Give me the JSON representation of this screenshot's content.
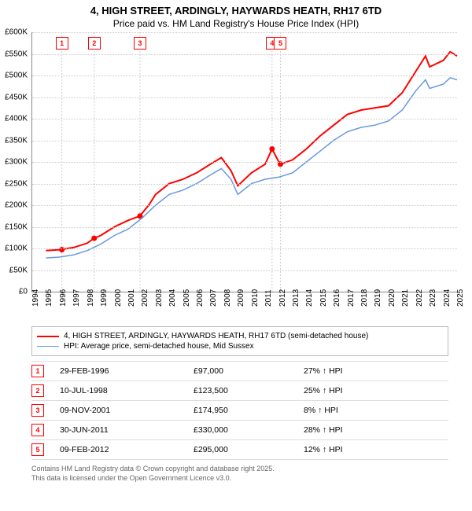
{
  "header": {
    "title": "4, HIGH STREET, ARDINGLY, HAYWARDS HEATH, RH17 6TD",
    "subtitle": "Price paid vs. HM Land Registry's House Price Index (HPI)"
  },
  "chart": {
    "type": "line",
    "background_color": "#ffffff",
    "grid_color": "#cccccc",
    "x": {
      "min": 1994,
      "max": 2025,
      "ticks": [
        1994,
        1995,
        1996,
        1997,
        1998,
        1999,
        2000,
        2001,
        2002,
        2003,
        2004,
        2005,
        2006,
        2007,
        2008,
        2009,
        2010,
        2011,
        2012,
        2013,
        2014,
        2015,
        2016,
        2017,
        2018,
        2019,
        2020,
        2021,
        2022,
        2023,
        2024,
        2025
      ]
    },
    "y": {
      "min": 0,
      "max": 600000,
      "ticks": [
        0,
        50000,
        100000,
        150000,
        200000,
        250000,
        300000,
        350000,
        400000,
        450000,
        500000,
        550000,
        600000
      ],
      "tick_labels": [
        "£0",
        "£50K",
        "£100K",
        "£150K",
        "£200K",
        "£250K",
        "£300K",
        "£350K",
        "£400K",
        "£450K",
        "£500K",
        "£550K",
        "£600K"
      ]
    },
    "series": [
      {
        "name": "price_paid",
        "label": "4, HIGH STREET, ARDINGLY, HAYWARDS HEATH, RH17 6TD (semi-detached house)",
        "color": "#ff0000",
        "line_width": 2,
        "points": [
          [
            1995.0,
            95000
          ],
          [
            1996.0,
            97000
          ],
          [
            1997.0,
            102000
          ],
          [
            1998.0,
            112000
          ],
          [
            1998.5,
            123500
          ],
          [
            1999.0,
            130000
          ],
          [
            2000.0,
            150000
          ],
          [
            2001.0,
            165000
          ],
          [
            2001.85,
            174950
          ],
          [
            2002.5,
            200000
          ],
          [
            2003.0,
            225000
          ],
          [
            2004.0,
            250000
          ],
          [
            2005.0,
            260000
          ],
          [
            2006.0,
            275000
          ],
          [
            2007.0,
            295000
          ],
          [
            2007.8,
            310000
          ],
          [
            2008.5,
            280000
          ],
          [
            2009.0,
            245000
          ],
          [
            2010.0,
            275000
          ],
          [
            2011.0,
            295000
          ],
          [
            2011.5,
            330000
          ],
          [
            2012.0,
            300000
          ],
          [
            2012.11,
            295000
          ],
          [
            2013.0,
            305000
          ],
          [
            2014.0,
            330000
          ],
          [
            2015.0,
            360000
          ],
          [
            2016.0,
            385000
          ],
          [
            2017.0,
            410000
          ],
          [
            2018.0,
            420000
          ],
          [
            2019.0,
            425000
          ],
          [
            2020.0,
            430000
          ],
          [
            2021.0,
            460000
          ],
          [
            2022.0,
            510000
          ],
          [
            2022.7,
            545000
          ],
          [
            2023.0,
            520000
          ],
          [
            2024.0,
            535000
          ],
          [
            2024.5,
            555000
          ],
          [
            2025.0,
            545000
          ]
        ],
        "sale_dots": [
          [
            1996.16,
            97000
          ],
          [
            1998.52,
            123500
          ],
          [
            2001.86,
            174950
          ],
          [
            2011.5,
            330000
          ],
          [
            2012.11,
            295000
          ]
        ]
      },
      {
        "name": "hpi",
        "label": "HPI: Average price, semi-detached house, Mid Sussex",
        "color": "#6699dd",
        "line_width": 1.5,
        "points": [
          [
            1995.0,
            78000
          ],
          [
            1996.0,
            80000
          ],
          [
            1997.0,
            85000
          ],
          [
            1998.0,
            95000
          ],
          [
            1999.0,
            110000
          ],
          [
            2000.0,
            130000
          ],
          [
            2001.0,
            145000
          ],
          [
            2002.0,
            170000
          ],
          [
            2003.0,
            200000
          ],
          [
            2004.0,
            225000
          ],
          [
            2005.0,
            235000
          ],
          [
            2006.0,
            250000
          ],
          [
            2007.0,
            270000
          ],
          [
            2007.8,
            285000
          ],
          [
            2008.5,
            260000
          ],
          [
            2009.0,
            225000
          ],
          [
            2010.0,
            250000
          ],
          [
            2011.0,
            260000
          ],
          [
            2012.0,
            265000
          ],
          [
            2013.0,
            275000
          ],
          [
            2014.0,
            300000
          ],
          [
            2015.0,
            325000
          ],
          [
            2016.0,
            350000
          ],
          [
            2017.0,
            370000
          ],
          [
            2018.0,
            380000
          ],
          [
            2019.0,
            385000
          ],
          [
            2020.0,
            395000
          ],
          [
            2021.0,
            420000
          ],
          [
            2022.0,
            465000
          ],
          [
            2022.7,
            490000
          ],
          [
            2023.0,
            470000
          ],
          [
            2024.0,
            480000
          ],
          [
            2024.5,
            495000
          ],
          [
            2025.0,
            490000
          ]
        ]
      }
    ],
    "callouts": [
      {
        "n": "1",
        "year": 1996.16
      },
      {
        "n": "2",
        "year": 1998.52
      },
      {
        "n": "3",
        "year": 2001.86
      },
      {
        "n": "4",
        "year": 2011.5
      },
      {
        "n": "5",
        "year": 2012.11
      }
    ]
  },
  "legend": {
    "items": [
      {
        "color": "#ff0000",
        "width": 2,
        "label": "4, HIGH STREET, ARDINGLY, HAYWARDS HEATH, RH17 6TD (semi-detached house)"
      },
      {
        "color": "#6699dd",
        "width": 1.5,
        "label": "HPI: Average price, semi-detached house, Mid Sussex"
      }
    ]
  },
  "table": {
    "rows": [
      {
        "n": "1",
        "date": "29-FEB-1996",
        "price": "£97,000",
        "pct": "27% ↑ HPI"
      },
      {
        "n": "2",
        "date": "10-JUL-1998",
        "price": "£123,500",
        "pct": "25% ↑ HPI"
      },
      {
        "n": "3",
        "date": "09-NOV-2001",
        "price": "£174,950",
        "pct": "8% ↑ HPI"
      },
      {
        "n": "4",
        "date": "30-JUN-2011",
        "price": "£330,000",
        "pct": "28% ↑ HPI"
      },
      {
        "n": "5",
        "date": "09-FEB-2012",
        "price": "£295,000",
        "pct": "12% ↑ HPI"
      }
    ]
  },
  "footer": {
    "line1": "Contains HM Land Registry data © Crown copyright and database right 2025.",
    "line2": "This data is licensed under the Open Government Licence v3.0."
  }
}
